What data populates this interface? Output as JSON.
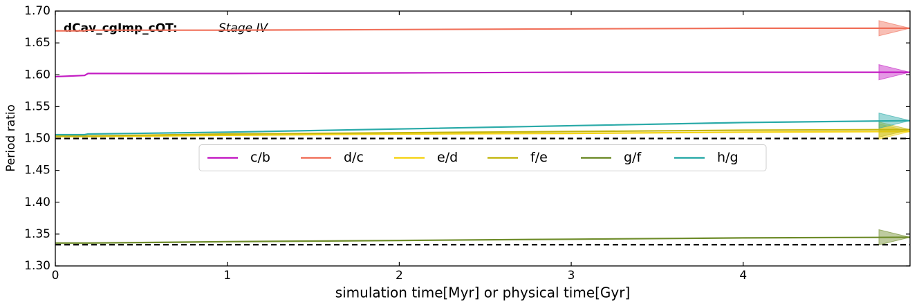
{
  "chart_data": {
    "type": "line",
    "title": "dCav_cgImp_cOT:",
    "subtitle": "Stage IV",
    "x_label": "simulation time[Myr] or physical time[Gyr]",
    "y_label": "Period ratio",
    "x": [
      0,
      0.17,
      0.19,
      1,
      2,
      3,
      4,
      4.97
    ],
    "series": [
      {
        "name": "c/b",
        "color": "#c31cc3",
        "values": [
          1.597,
          1.599,
          1.602,
          1.602,
          1.603,
          1.604,
          1.604,
          1.604
        ]
      },
      {
        "name": "d/c",
        "color": "#f0705a",
        "values": [
          1.669,
          1.669,
          1.67,
          1.67,
          1.671,
          1.672,
          1.673,
          1.673
        ]
      },
      {
        "name": "e/d",
        "color": "#f5d416",
        "values": [
          1.503,
          1.503,
          1.503,
          1.505,
          1.507,
          1.508,
          1.51,
          1.511
        ]
      },
      {
        "name": "f/e",
        "color": "#c4b710",
        "values": [
          1.504,
          1.504,
          1.504,
          1.507,
          1.509,
          1.511,
          1.513,
          1.514
        ]
      },
      {
        "name": "g/f",
        "color": "#6e8c2a",
        "values": [
          1.336,
          1.336,
          1.336,
          1.338,
          1.34,
          1.342,
          1.344,
          1.345
        ]
      },
      {
        "name": "h/g",
        "color": "#2aaaa8",
        "values": [
          1.506,
          1.506,
          1.507,
          1.51,
          1.515,
          1.52,
          1.525,
          1.528
        ]
      }
    ],
    "reference_lines": [
      1.5,
      1.3333
    ],
    "xlim": [
      0,
      4.97
    ],
    "xticks": [
      0,
      1,
      2,
      3,
      4
    ],
    "ylim": [
      1.3,
      1.7
    ],
    "yticks": [
      {
        "value": 1.3,
        "label": "1.30"
      },
      {
        "value": 1.35,
        "label": "1.35"
      },
      {
        "value": 1.4,
        "label": "1.40"
      },
      {
        "value": 1.45,
        "label": "1.45"
      },
      {
        "value": 1.5,
        "label": "1.50"
      },
      {
        "value": 1.55,
        "label": "1.55"
      },
      {
        "value": 1.6,
        "label": "1.60"
      },
      {
        "value": 1.65,
        "label": "1.65"
      },
      {
        "value": 1.7,
        "label": "1.70"
      }
    ],
    "legend": "center",
    "grid": false
  }
}
